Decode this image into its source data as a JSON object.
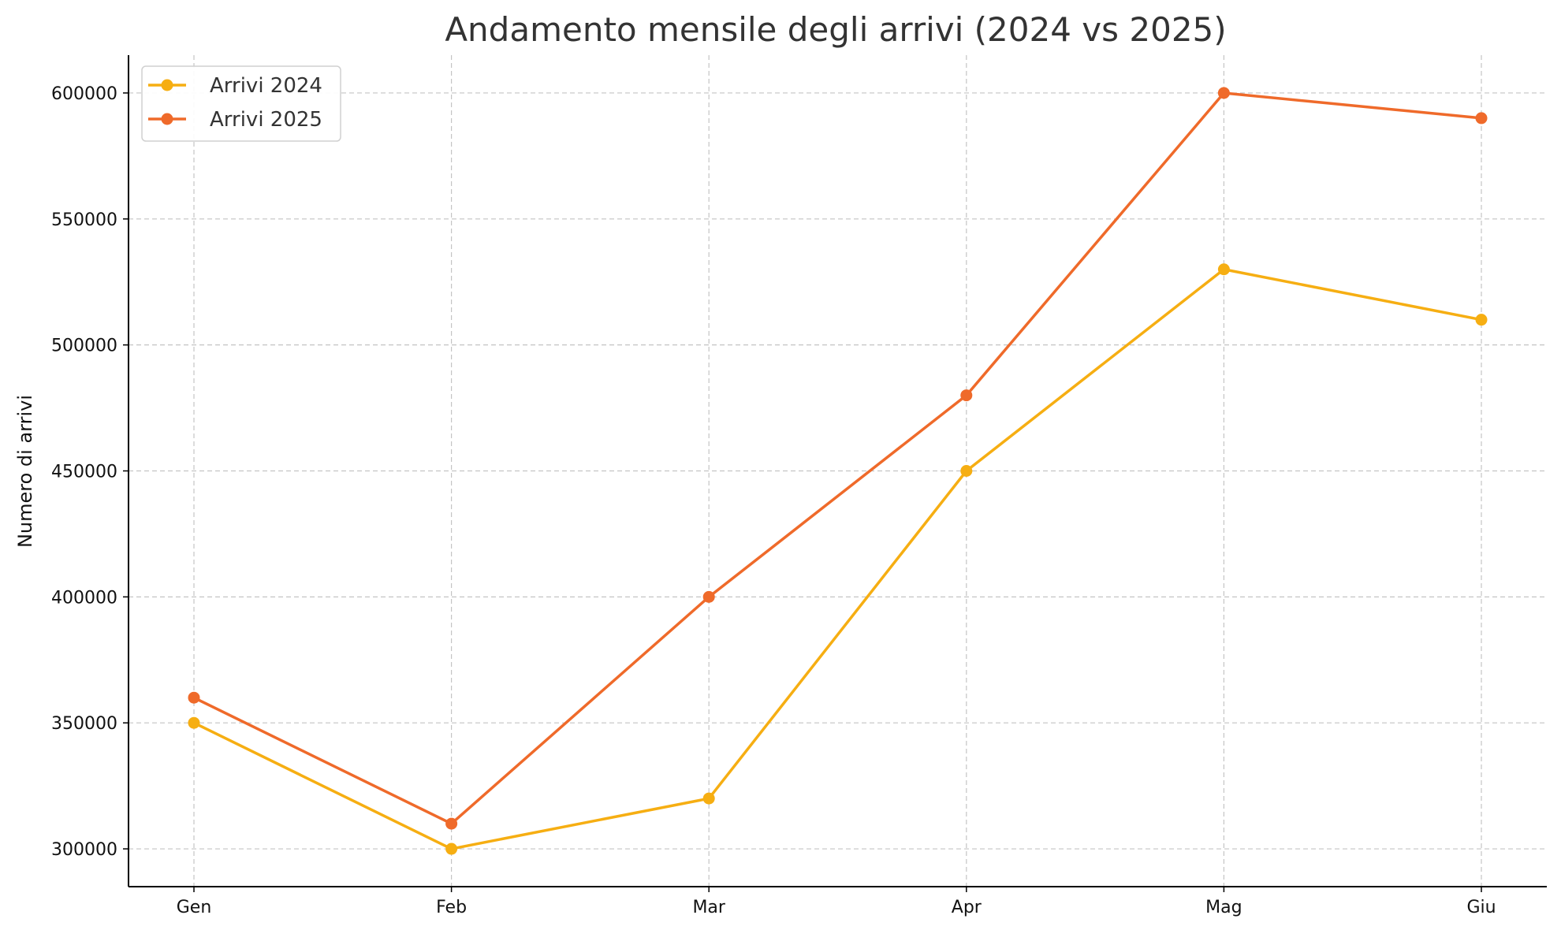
{
  "chart_data": {
    "type": "line",
    "title": "Andamento mensile degli arrivi (2024 vs 2025)",
    "xlabel": "",
    "ylabel": "Numero di arrivi",
    "categories": [
      "Gen",
      "Feb",
      "Mar",
      "Apr",
      "Mag",
      "Giu"
    ],
    "ylim": [
      285000,
      615000
    ],
    "yticks": [
      300000,
      350000,
      400000,
      450000,
      500000,
      550000,
      600000
    ],
    "grid": true,
    "legend_position": "top-left",
    "series": [
      {
        "name": "Arrivi 2024",
        "color": "#F6AE12",
        "values": [
          350000,
          300000,
          320000,
          450000,
          530000,
          510000
        ]
      },
      {
        "name": "Arrivi 2025",
        "color": "#EF6A2A",
        "values": [
          360000,
          310000,
          400000,
          480000,
          600000,
          590000
        ]
      }
    ]
  }
}
